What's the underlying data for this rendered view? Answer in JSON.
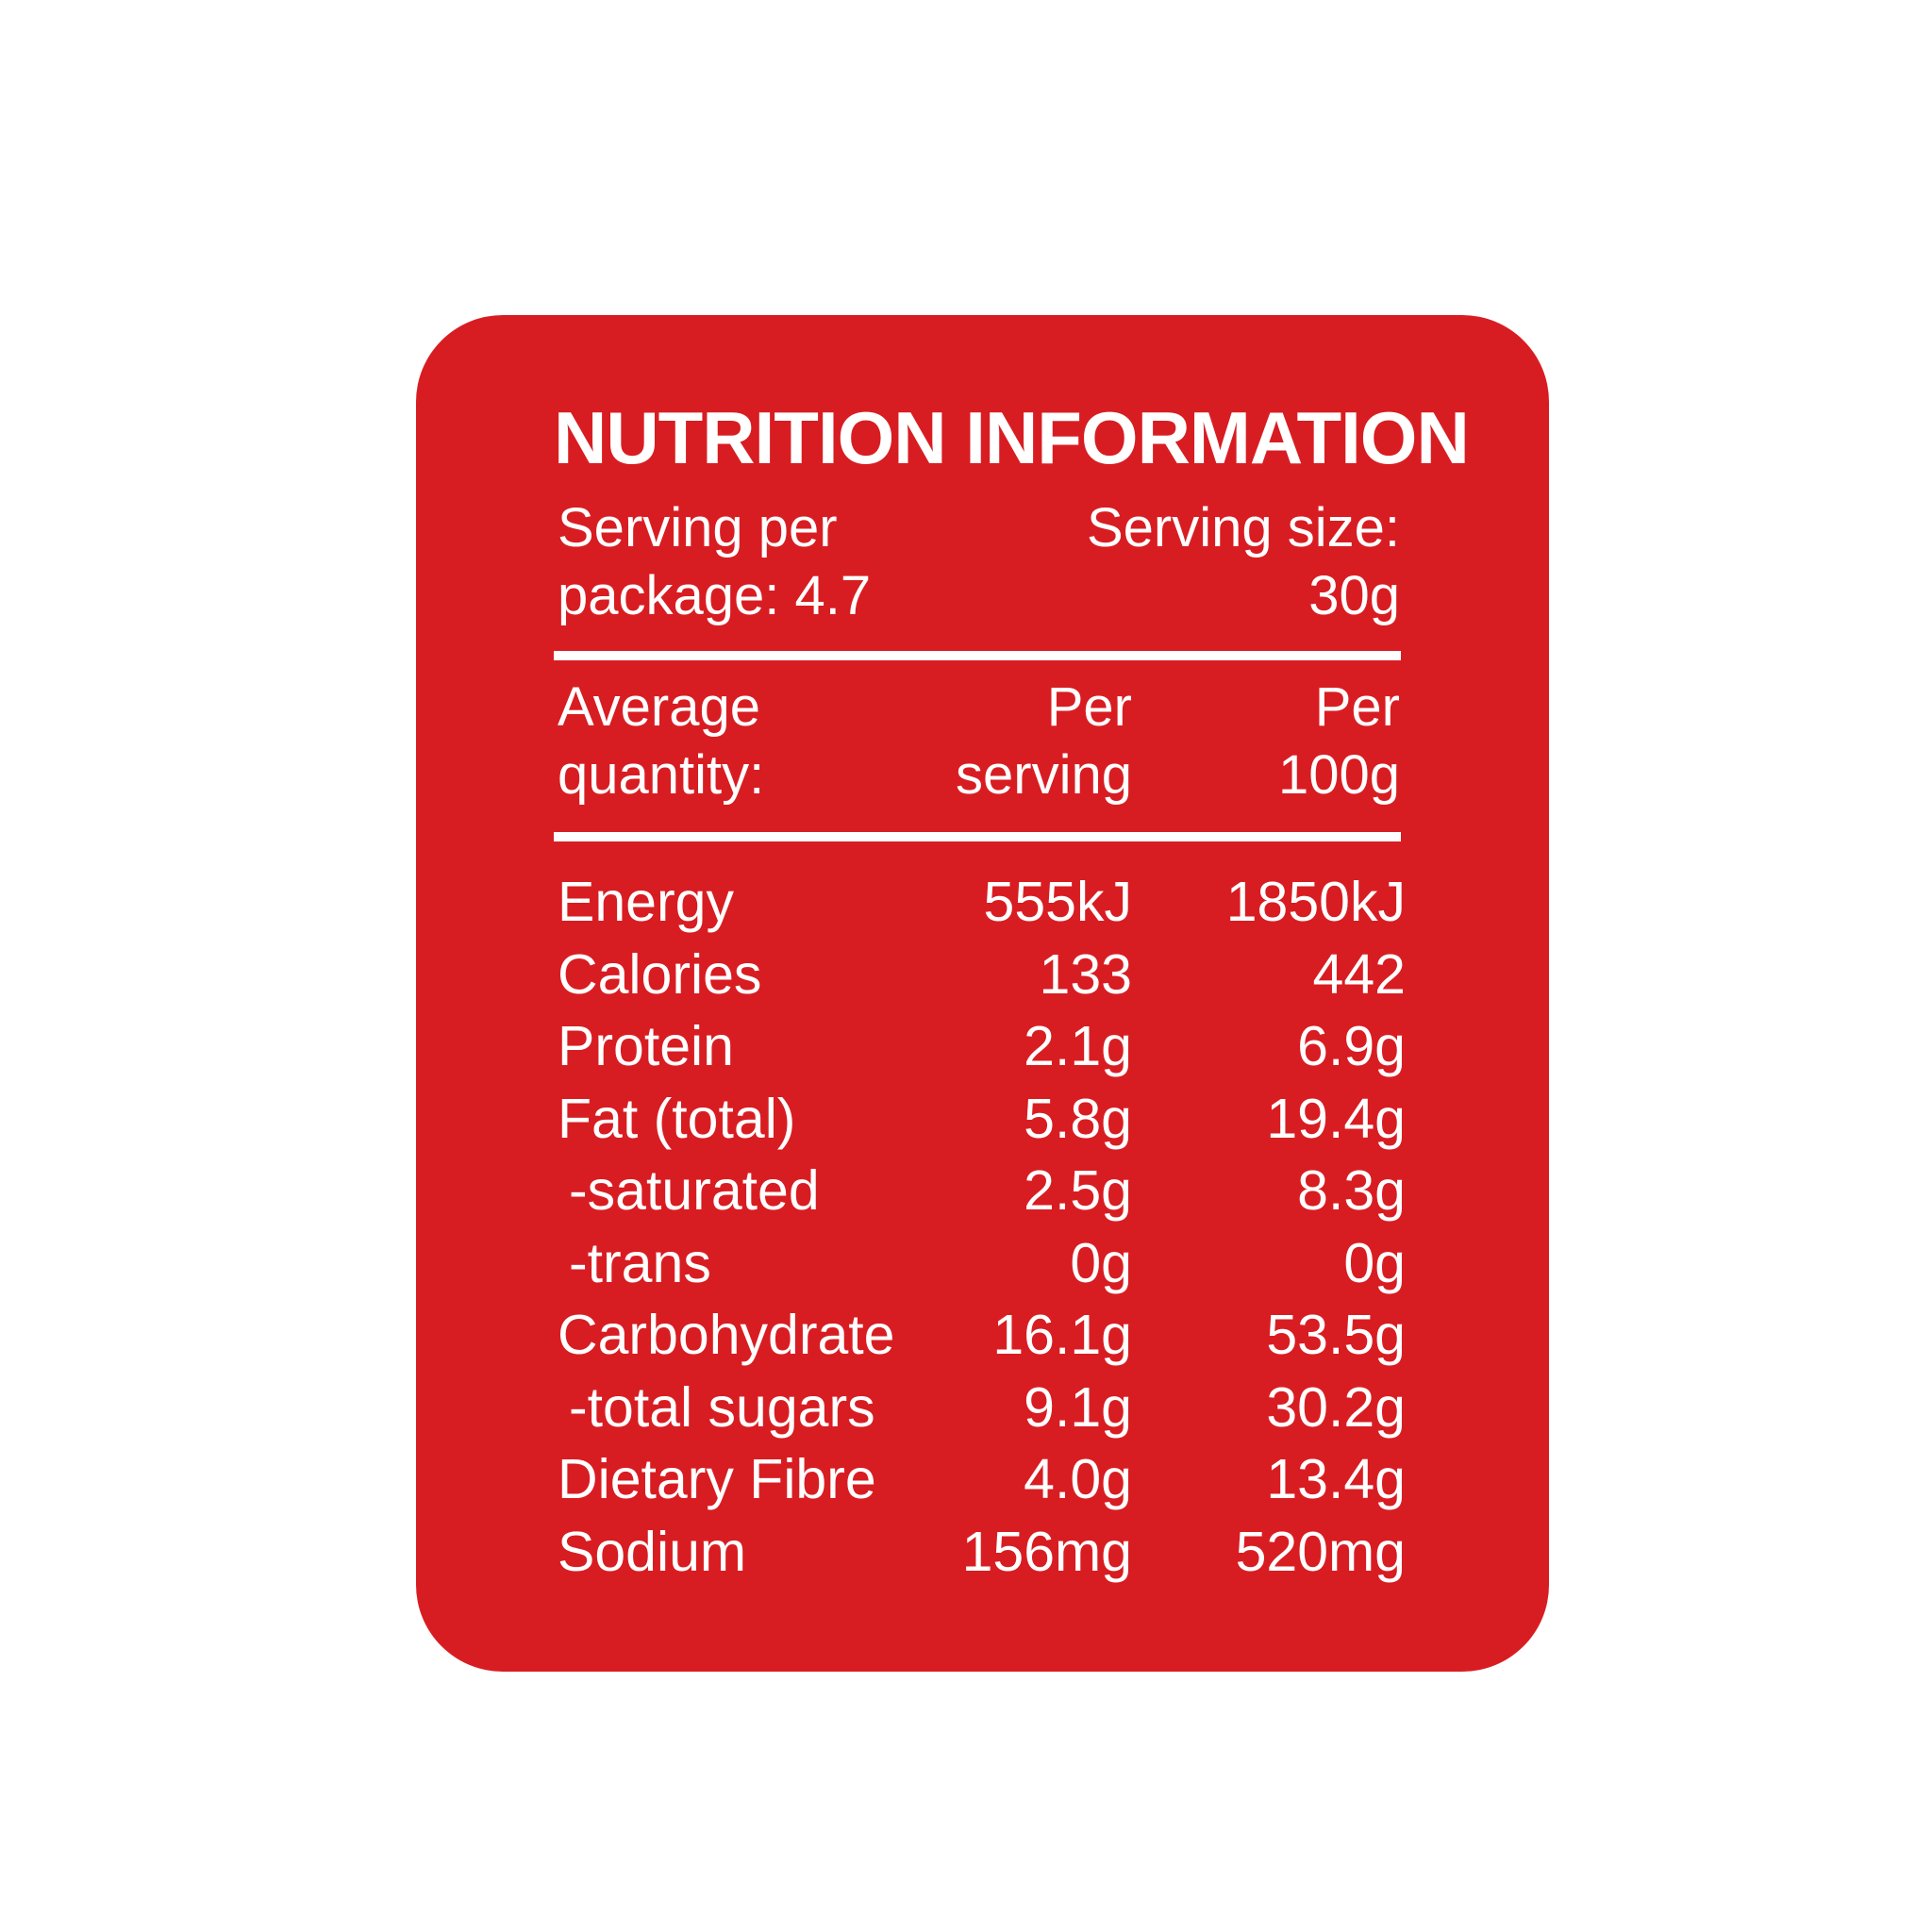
{
  "panel": {
    "background_color": "#d81d22",
    "text_color": "#ffffff",
    "title": "NUTRITION INFORMATION",
    "serving_per_package": [
      "Serving per",
      "package: 4.7"
    ],
    "serving_size": [
      "Serving size:",
      "30g"
    ],
    "columns": {
      "label": [
        "Average",
        "quantity:"
      ],
      "per_serving": [
        "Per",
        "serving"
      ],
      "per_100g": [
        "Per",
        "100g"
      ]
    },
    "rows": [
      {
        "name": "Energy",
        "per_serving": "555kJ",
        "per_100g": "1850kJ"
      },
      {
        "name": "Calories",
        "per_serving": "133",
        "per_100g": "442"
      },
      {
        "name": "Protein",
        "per_serving": "2.1g",
        "per_100g": "6.9g"
      },
      {
        "name": "Fat (total)",
        "per_serving": "5.8g",
        "per_100g": "19.4g"
      },
      {
        "name": "-saturated",
        "per_serving": "2.5g",
        "per_100g": "8.3g"
      },
      {
        "name": "-trans",
        "per_serving": "0g",
        "per_100g": "0g"
      },
      {
        "name": "Carbohydrate",
        "per_serving": "16.1g",
        "per_100g": "53.5g"
      },
      {
        "name": "-total sugars",
        "per_serving": "9.1g",
        "per_100g": "30.2g"
      },
      {
        "name": "Dietary Fibre",
        "per_serving": "4.0g",
        "per_100g": "13.4g"
      },
      {
        "name": "Sodium",
        "per_serving": "156mg",
        "per_100g": "520mg"
      }
    ]
  }
}
